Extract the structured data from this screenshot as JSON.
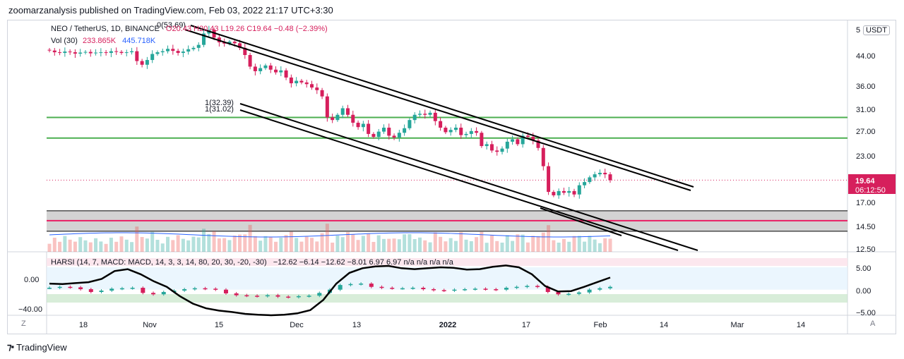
{
  "header": {
    "published": "zoomarzanalysis published on TradingView.com, Feb 03, 2022 21:17 UTC+3:30"
  },
  "legend": {
    "symbol": "NEO / TetherUS, 1D, BINANCE",
    "ohlc": "O20.43  H20.43  L19.26  C19.64  −0.48 (−2.39%)",
    "vol_label": "Vol (30)",
    "vol_val1": "233.865K",
    "vol_val2": "445.718K",
    "currency": "USDT",
    "harsi": "HARSI  (14, 7, MACD: MACD, 14, 3, 3, 14, 80, 20, 30, -20, -30)",
    "harsi_vals": "−12.62  −6.14  −12.62  −8.01  6.97  6.97  n/a  n/a  n/a  n/a"
  },
  "annotations": {
    "top": "0(53.69)",
    "mid1": "1(32.39)",
    "mid2": "1(31.02)"
  },
  "price_axis": {
    "labels": [
      "5",
      "44.00",
      "36.00",
      "31.00",
      "27.00",
      "23.00",
      "17.00",
      "14.50",
      "12.50"
    ],
    "last_price": "19.64",
    "countdown": "06:12:50"
  },
  "indicator_axis": {
    "right": [
      "5.00",
      "0.00",
      "−5.00"
    ],
    "left": [
      "0.00",
      "−40.00"
    ]
  },
  "time_axis": {
    "labels": [
      "18",
      "Nov",
      "15",
      "Dec",
      "13",
      "2022",
      "17",
      "Feb",
      "14",
      "Mar",
      "14"
    ],
    "left_btn": "Z",
    "right_btn": "A"
  },
  "colors": {
    "up": "#26a69a",
    "down": "#d61f5c",
    "green_line": "#4caf50",
    "red_line": "#e91e63",
    "channel": "#000000"
  },
  "brand": "TradingView",
  "chart_data": {
    "type": "candlestick",
    "symbol": "NEO/USDT",
    "interval": "1D",
    "x": [
      "2021-10-14",
      "2021-11-01",
      "2021-11-15",
      "2021-12-06",
      "2021-12-13",
      "2022-01-01",
      "2022-01-17",
      "2022-02-01"
    ],
    "ohlc_last": {
      "open": 20.43,
      "high": 20.43,
      "low": 19.26,
      "close": 19.64,
      "change": -0.48,
      "change_pct": -2.39
    },
    "horizontal_levels": {
      "green": [
        29.5,
        25.8
      ],
      "red": 15.1,
      "zone": [
        14.1,
        16.1
      ]
    },
    "closes": [
      45.5,
      45.0,
      44.8,
      45.2,
      45.0,
      44.6,
      44.9,
      45.1,
      44.7,
      44.9,
      45.0,
      44.8,
      45.3,
      45.1,
      44.8,
      45.0,
      45.3,
      42.5,
      41.5,
      42.8,
      44.5,
      45.0,
      45.3,
      46.0,
      45.4,
      44.8,
      45.2,
      45.9,
      46.3,
      47.2,
      50.8,
      52.0,
      49.5,
      48.0,
      47.6,
      48.2,
      47.7,
      46.3,
      44.2,
      41.0,
      39.8,
      40.6,
      41.3,
      40.2,
      39.5,
      40.0,
      38.2,
      36.8,
      37.4,
      37.0,
      36.6,
      35.8,
      35.2,
      33.8,
      29.5,
      29.0,
      30.0,
      31.3,
      30.0,
      28.5,
      27.7,
      28.3,
      26.5,
      26.0,
      26.9,
      27.6,
      26.2,
      25.9,
      26.7,
      27.5,
      29.0,
      30.0,
      30.2,
      30.0,
      30.4,
      28.8,
      27.6,
      26.8,
      27.2,
      27.6,
      26.3,
      26.5,
      27.0,
      26.7,
      24.5,
      24.8,
      23.8,
      23.6,
      24.1,
      25.2,
      25.6,
      24.8,
      26.2,
      26.0,
      25.4,
      24.2,
      21.5,
      18.2,
      17.8,
      18.3,
      18.1,
      18.3,
      17.9,
      19.0,
      19.4,
      20.0,
      20.4,
      20.6,
      20.4,
      19.64
    ],
    "harsi_ohlc_close": [
      0.6,
      0.8,
      0.7,
      0.3,
      -0.3,
      0.0,
      0.4,
      0.5,
      0.6,
      -0.5,
      -0.8,
      -0.3,
      0.0,
      0.3,
      0.5,
      0.4,
      0.2,
      -0.6,
      -1.0,
      -1.1,
      -1.2,
      -1.0,
      -1.3,
      -1.4,
      -1.2,
      -1.1,
      -0.5,
      0.2,
      1.2,
      1.4,
      1.5,
      0.8,
      0.6,
      0.5,
      0.5,
      0.6,
      0.3,
      0.1,
      0.0,
      0.2,
      0.3,
      0.4,
      0.3,
      0.2,
      0.6,
      0.8,
      1.0,
      0.8,
      -0.3,
      -0.8,
      -0.7,
      -0.4,
      0.2,
      0.5,
      0.8
    ],
    "harsi_rsi": [
      1.5,
      1.4,
      1.6,
      1.8,
      2.5,
      4.2,
      4.6,
      3.5,
      2.0,
      0.8,
      -1.2,
      -2.8,
      -3.8,
      -4.3,
      -4.6,
      -5.0,
      -5.2,
      -5.3,
      -5.2,
      -4.9,
      -4.2,
      -2.0,
      1.5,
      3.8,
      4.8,
      5.2,
      5.3,
      4.8,
      4.6,
      4.8,
      5.0,
      4.9,
      4.5,
      4.6,
      5.1,
      5.4,
      5.0,
      3.5,
      1.0,
      -0.2,
      -0.1,
      0.8,
      1.8,
      2.8
    ]
  }
}
